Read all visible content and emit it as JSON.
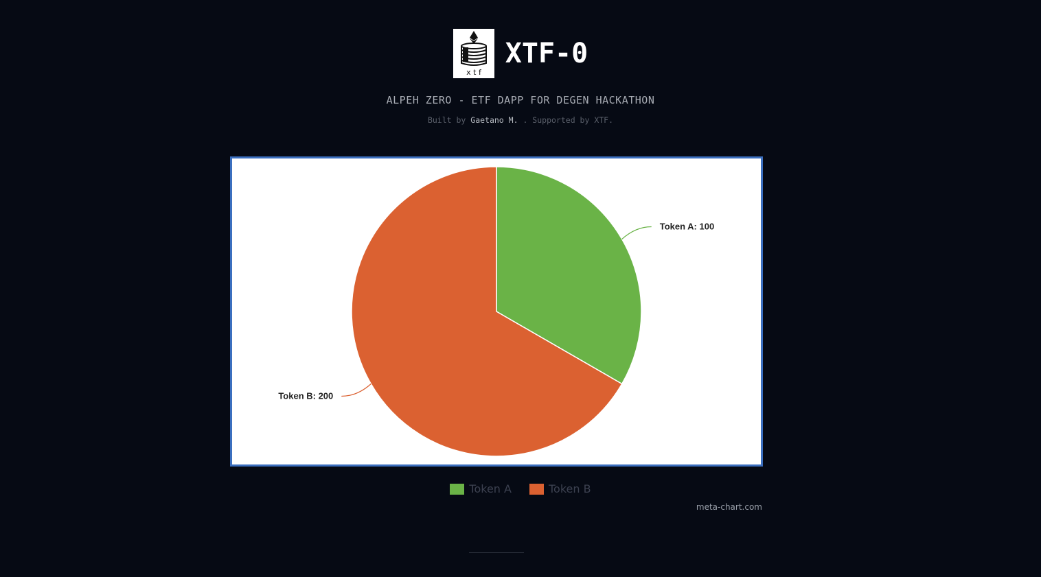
{
  "header": {
    "title": "XTF-0",
    "logo_letters": "x t f",
    "logo_icon": "ethereum-cake-logo"
  },
  "subtitle": "ALPEH ZERO - ETF DAPP FOR DEGEN HACKATHON",
  "credits": {
    "prefix": "Built by",
    "author": "Gaetano M.",
    "middle": ". Supported by",
    "supporter": "XTF",
    "suffix": "."
  },
  "chart_data": {
    "type": "pie",
    "title": "",
    "categories": [
      "Token A",
      "Token B"
    ],
    "values": [
      100,
      200
    ],
    "slice_labels": [
      "Token A: 100",
      "Token B: 200"
    ],
    "colors": [
      "#6ab347",
      "#db6131"
    ],
    "legend_position": "bottom-center",
    "start_angle": "top, clockwise"
  },
  "source_credit": "meta-chart.com"
}
